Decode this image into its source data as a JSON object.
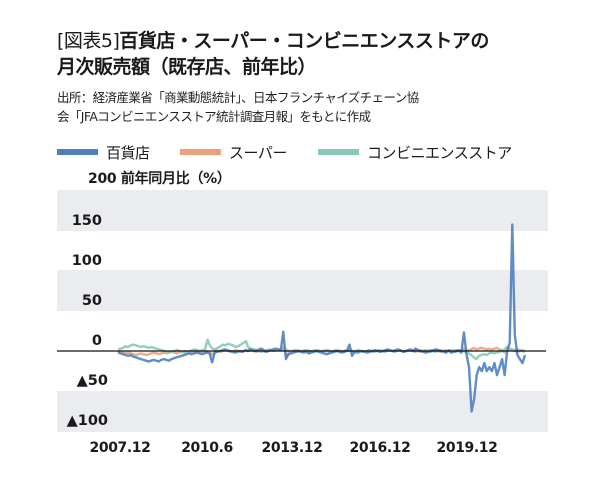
{
  "title": {
    "prefix": "[図表5]",
    "line1": "百貨店・スーパー・コンビニエンスストアの",
    "line2": "月次販売額（既存店、前年比）"
  },
  "source": {
    "line1": "出所：経済産業省「商業動態統計」、日本フランチャイズチェーン協",
    "line2": "会「JFAコンビニエンスストア統計調査月報」をもとに作成"
  },
  "legend": [
    {
      "label": "百貨店",
      "color": "#4f7fc1"
    },
    {
      "label": "スーパー",
      "color": "#eea07c"
    },
    {
      "label": "コンビニエンスストア",
      "color": "#86c9b8"
    }
  ],
  "axis": {
    "unit_label": "200 前年同月比（%）",
    "y_ticks": [
      "150",
      "100",
      "50",
      "0",
      "▲50",
      "▲100"
    ],
    "x_ticks": [
      "2007.12",
      "2010.6",
      "2013.12",
      "2016.12",
      "2019.12"
    ]
  },
  "chart_data": {
    "type": "line",
    "title": "百貨店・スーパー・コンビニエンスストアの月次販売額（既存店、前年比）",
    "xlabel": "",
    "ylabel": "前年同月比（%）",
    "ylim": [
      -100,
      200
    ],
    "y_ticks": [
      200,
      150,
      100,
      50,
      0,
      -50,
      -100
    ],
    "x_tick_labels": [
      "2007.12",
      "2010.6",
      "2013.12",
      "2016.12",
      "2019.12"
    ],
    "grid": "alternating horizontal bands (150-200, 50-100, -50 to -100 shaded)",
    "legend_position": "top",
    "note": "Monthly series; values approximated from pixel positions",
    "series": [
      {
        "name": "百貨店",
        "color": "#4f7fc1",
        "values": [
          -2,
          -3,
          -4,
          -5,
          -6,
          -5,
          -7,
          -8,
          -9,
          -10,
          -11,
          -12,
          -13,
          -12,
          -11,
          -12,
          -13,
          -11,
          -10,
          -11,
          -12,
          -10,
          -9,
          -8,
          -7,
          -6,
          -5,
          -4,
          -3,
          -4,
          -3,
          -2,
          -3,
          -4,
          -3,
          -2,
          -3,
          -14,
          -2,
          -1,
          0,
          1,
          2,
          1,
          0,
          -1,
          -2,
          -1,
          0,
          -1,
          1,
          0,
          2,
          1,
          0,
          1,
          3,
          2,
          -1,
          0,
          1,
          2,
          3,
          2,
          1,
          24,
          -10,
          -4,
          -3,
          -2,
          -1,
          0,
          -1,
          -2,
          -1,
          -3,
          -2,
          -1,
          0,
          -1,
          -2,
          -3,
          -4,
          -3,
          -2,
          -1,
          0,
          -1,
          -2,
          -1,
          0,
          8,
          -6,
          -1,
          -2,
          -1,
          0,
          -1,
          -2,
          -1,
          0,
          1,
          0,
          -1,
          0,
          1,
          2,
          1,
          0,
          1,
          2,
          1,
          -1,
          0,
          1,
          2,
          0,
          3,
          1,
          0,
          -1,
          -2,
          -1,
          0,
          1,
          2,
          1,
          0,
          -1,
          -2,
          1,
          -2,
          -1,
          0,
          1,
          -2,
          23,
          -4,
          -20,
          -75,
          -60,
          -30,
          -20,
          -25,
          -15,
          -25,
          -20,
          -25,
          -15,
          -30,
          -20,
          -10,
          -30,
          0,
          10,
          157,
          20,
          -5,
          -10,
          -15,
          -5
        ]
      },
      {
        "name": "スーパー",
        "color": "#eea07c",
        "values": [
          0,
          -1,
          -2,
          -3,
          -2,
          -3,
          -4,
          -5,
          -4,
          -3,
          -4,
          -5,
          -4,
          -3,
          -2,
          -3,
          -4,
          -3,
          -2,
          -3,
          -2,
          -1,
          -2,
          -3,
          -2,
          -1,
          0,
          -1,
          -2,
          -1,
          0,
          -1,
          -2,
          -1,
          0,
          -1,
          -2,
          -5,
          1,
          0,
          -1,
          0,
          1,
          0,
          -1,
          0,
          1,
          0,
          -1,
          0,
          1,
          0,
          1,
          0,
          -1,
          0,
          1,
          0,
          -1,
          0,
          1,
          0,
          1,
          2,
          1,
          6,
          -8,
          -1,
          0,
          1,
          0,
          -1,
          0,
          1,
          0,
          -1,
          0,
          1,
          0,
          -1,
          0,
          1,
          0,
          -1,
          0,
          1,
          0,
          -1,
          0,
          1,
          0,
          2,
          -1,
          0,
          1,
          0,
          -1,
          0,
          1,
          0,
          -1,
          0,
          1,
          0,
          -1,
          0,
          1,
          0,
          -1,
          0,
          1,
          0,
          -1,
          0,
          1,
          0,
          1,
          0,
          -1,
          0,
          1,
          0,
          -1,
          0,
          1,
          0,
          -1,
          0,
          1,
          0,
          -1,
          0,
          1,
          0,
          -1,
          3,
          0,
          1,
          2,
          4,
          2,
          3,
          4,
          3,
          2,
          3,
          2,
          3,
          4,
          2,
          1,
          -2,
          1,
          2,
          1,
          0,
          -1,
          0,
          1,
          0
        ]
      },
      {
        "name": "コンビニエンスストア",
        "color": "#86c9b8",
        "values": [
          2,
          3,
          4,
          6,
          5,
          7,
          8,
          7,
          6,
          5,
          6,
          5,
          4,
          5,
          4,
          3,
          2,
          1,
          0,
          -1,
          -2,
          -1,
          0,
          1,
          0,
          -1,
          -2,
          -1,
          0,
          1,
          2,
          1,
          0,
          1,
          2,
          14,
          6,
          3,
          2,
          4,
          6,
          8,
          7,
          9,
          8,
          7,
          5,
          6,
          8,
          10,
          12,
          4,
          3,
          2,
          1,
          0,
          -1,
          0,
          1,
          2,
          1,
          0,
          1,
          2,
          1,
          2,
          1,
          0,
          -1,
          0,
          1,
          0,
          -1,
          0,
          1,
          0,
          -1,
          0,
          1,
          0,
          -1,
          0,
          1,
          0,
          -1,
          0,
          1,
          0,
          -1,
          0,
          1,
          0,
          -1,
          0,
          1,
          0,
          -1,
          0,
          1,
          0,
          -1,
          0,
          1,
          0,
          -1,
          0,
          1,
          0,
          -1,
          0,
          1,
          0,
          -1,
          0,
          1,
          0,
          -1,
          0,
          1,
          0,
          -1,
          0,
          1,
          0,
          -1,
          0,
          1,
          0,
          -1,
          0,
          1,
          0,
          -1,
          0,
          1,
          0,
          -2,
          -3,
          -5,
          -8,
          -10,
          -6,
          -5,
          -4,
          -5,
          -3,
          -2,
          -3,
          -2,
          -1,
          0,
          2,
          5,
          3,
          2,
          1,
          2,
          1,
          0,
          -1
        ]
      }
    ]
  }
}
